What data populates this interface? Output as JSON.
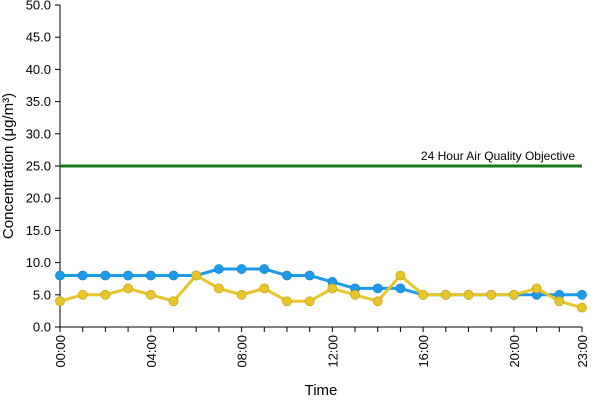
{
  "chart_data": {
    "type": "line",
    "xlabel": "Time",
    "ylabel": "Concentration (μg/m³)",
    "ylim": [
      0,
      50
    ],
    "yticks": [
      "0.0",
      "5.0",
      "10.0",
      "15.0",
      "20.0",
      "25.0",
      "30.0",
      "35.0",
      "40.0",
      "45.0",
      "50.0"
    ],
    "x": [
      "00:00",
      "01:00",
      "02:00",
      "03:00",
      "04:00",
      "05:00",
      "06:00",
      "07:00",
      "08:00",
      "09:00",
      "10:00",
      "11:00",
      "12:00",
      "13:00",
      "14:00",
      "15:00",
      "16:00",
      "17:00",
      "18:00",
      "19:00",
      "20:00",
      "21:00",
      "22:00",
      "23:00"
    ],
    "xtick_labels": [
      "00:00",
      "04:00",
      "08:00",
      "12:00",
      "16:00",
      "20:00",
      "23:00"
    ],
    "reference_line": {
      "value": 25,
      "label": "24 Hour Air Quality Objective",
      "color": "#1a7a1a"
    },
    "series": [
      {
        "color": "#1e9be8",
        "values": [
          8,
          8,
          8,
          8,
          8,
          8,
          8,
          9,
          9,
          9,
          8,
          8,
          7,
          6,
          6,
          6,
          5,
          5,
          5,
          5,
          5,
          5,
          5,
          5
        ]
      },
      {
        "color": "#e8c52a",
        "values": [
          4,
          5,
          5,
          6,
          5,
          4,
          8,
          6,
          5,
          6,
          4,
          4,
          6,
          5,
          4,
          8,
          5,
          5,
          5,
          5,
          5,
          6,
          4,
          3
        ]
      }
    ],
    "grid": false,
    "legend": "none"
  }
}
